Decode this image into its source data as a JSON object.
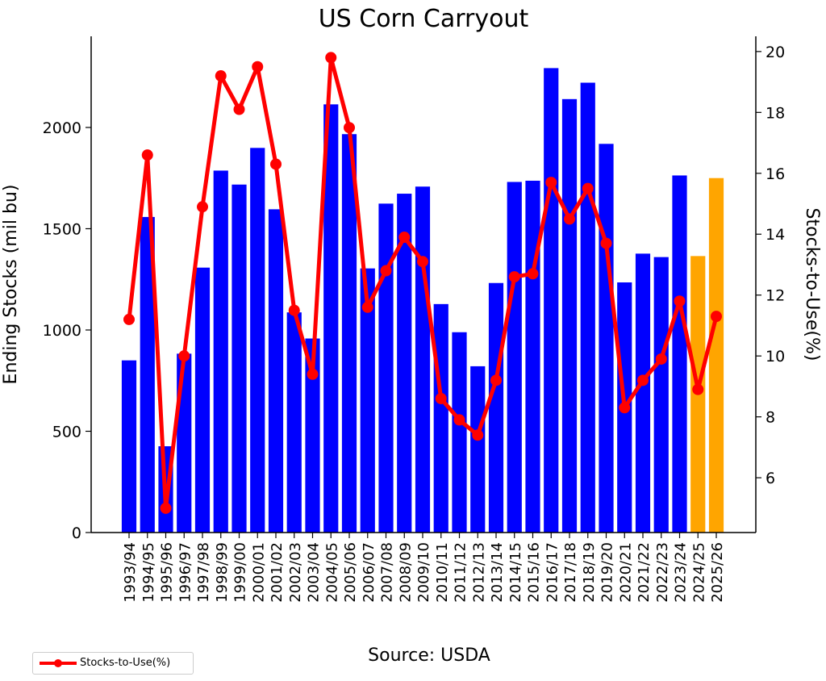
{
  "chart_data": {
    "type": "bar",
    "title": "US Corn Carryout",
    "ylabel": "Ending Stocks (mil bu)",
    "y2label": "Stocks-to-Use(%)",
    "source": "Source: USDA",
    "categories": [
      "1993/94",
      "1994/95",
      "1995/96",
      "1996/97",
      "1997/98",
      "1998/99",
      "1999/00",
      "2000/01",
      "2001/02",
      "2002/03",
      "2003/04",
      "2004/05",
      "2005/06",
      "2006/07",
      "2007/08",
      "2008/09",
      "2009/10",
      "2010/11",
      "2011/12",
      "2012/13",
      "2013/14",
      "2014/15",
      "2015/16",
      "2016/17",
      "2017/18",
      "2018/19",
      "2019/20",
      "2020/21",
      "2021/22",
      "2022/23",
      "2023/24",
      "2024/25",
      "2025/26"
    ],
    "series": [
      {
        "name": "Ending Stocks",
        "axis": "left",
        "kind": "bar",
        "values": [
          850,
          1558,
          426,
          883,
          1308,
          1787,
          1718,
          1899,
          1596,
          1087,
          958,
          2114,
          1967,
          1304,
          1624,
          1673,
          1708,
          1128,
          989,
          821,
          1232,
          1731,
          1737,
          2293,
          2140,
          2221,
          1919,
          1235,
          1377,
          1360,
          1763,
          1365,
          1750
        ],
        "colors": [
          "#0000ff",
          "#0000ff",
          "#0000ff",
          "#0000ff",
          "#0000ff",
          "#0000ff",
          "#0000ff",
          "#0000ff",
          "#0000ff",
          "#0000ff",
          "#0000ff",
          "#0000ff",
          "#0000ff",
          "#0000ff",
          "#0000ff",
          "#0000ff",
          "#0000ff",
          "#0000ff",
          "#0000ff",
          "#0000ff",
          "#0000ff",
          "#0000ff",
          "#0000ff",
          "#0000ff",
          "#0000ff",
          "#0000ff",
          "#0000ff",
          "#0000ff",
          "#0000ff",
          "#0000ff",
          "#0000ff",
          "#ffa500",
          "#ffa500"
        ]
      },
      {
        "name": "Stocks-to-Use(%)",
        "axis": "right",
        "kind": "line",
        "color": "#ff0000",
        "values": [
          11.2,
          16.6,
          5.0,
          10.0,
          14.9,
          19.2,
          18.1,
          19.5,
          16.3,
          11.5,
          9.4,
          19.8,
          17.5,
          11.6,
          12.8,
          13.9,
          13.1,
          8.6,
          7.9,
          7.4,
          9.2,
          12.6,
          12.7,
          15.7,
          14.5,
          15.5,
          13.7,
          8.3,
          9.2,
          9.9,
          11.8,
          8.9,
          11.3
        ]
      }
    ],
    "ylim": [
      0,
      2450
    ],
    "yticks": [
      0,
      500,
      1000,
      1500,
      2000
    ],
    "y2lim": [
      4.2,
      20.5
    ],
    "y2ticks": [
      6,
      8,
      10,
      12,
      14,
      16,
      18,
      20
    ],
    "legend_position": "bottom-left"
  },
  "legend": {
    "label": "Stocks-to-Use(%)"
  }
}
